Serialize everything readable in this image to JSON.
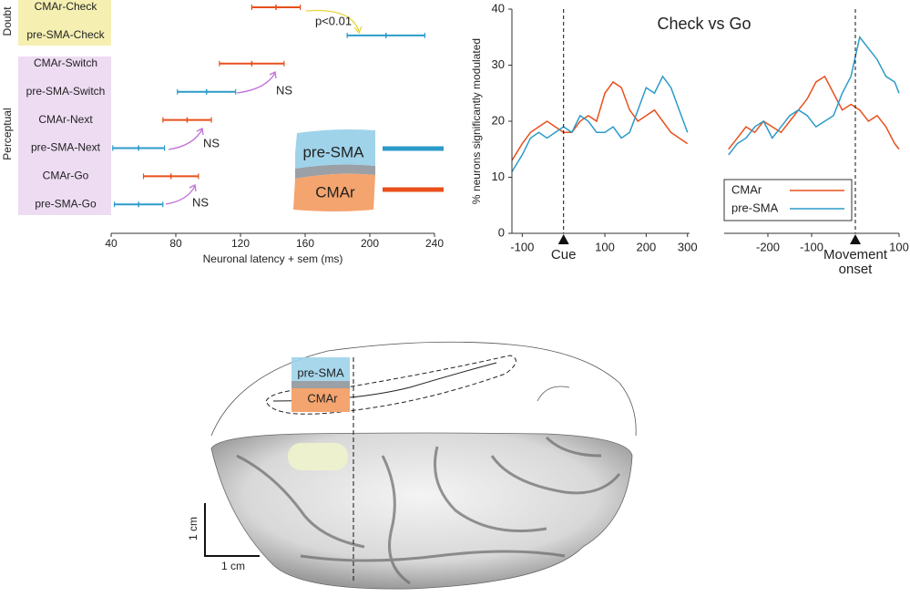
{
  "chart_data": [
    {
      "type": "errorbar",
      "groups": [
        "Doubt",
        "Perceptual"
      ],
      "categories": [
        "CMAr-Check",
        "pre-SMA-Check",
        "CMAr-Switch",
        "pre-SMA-Switch",
        "CMAr-Next",
        "pre-SMA-Next",
        "CMAr-Go",
        "pre-SMA-Go"
      ],
      "series": [
        {
          "name": "CMAr",
          "color": "#e8501c",
          "values": [
            142,
            null,
            127,
            null,
            87,
            null,
            77,
            null
          ],
          "errors": [
            15,
            null,
            20,
            null,
            15,
            null,
            17,
            null
          ]
        },
        {
          "name": "pre-SMA",
          "color": "#2b9bc8",
          "values": [
            null,
            210,
            null,
            99,
            null,
            57,
            null,
            57
          ],
          "errors": [
            null,
            24,
            null,
            18,
            null,
            16,
            null,
            15
          ]
        }
      ],
      "xlabel": "Neuronal latency + sem (ms)",
      "xlim": [
        40,
        240
      ],
      "xticks": [
        40,
        80,
        120,
        160,
        200,
        240
      ],
      "annotations": [
        "p<0.01",
        "NS",
        "NS",
        "NS"
      ]
    },
    {
      "type": "line",
      "title": "Check vs Go",
      "ylabel": "% neurons significantly modulated",
      "x": [
        -125,
        -100,
        -80,
        -60,
        -40,
        -20,
        0,
        20,
        40,
        60,
        80,
        100,
        120,
        140,
        160,
        180,
        200,
        220,
        240,
        260,
        280,
        300
      ],
      "series": [
        {
          "color": "#e8501c",
          "values": [
            13,
            16,
            18,
            19,
            20,
            19,
            18,
            18,
            20,
            21,
            20,
            25,
            27,
            26,
            22,
            20,
            21,
            22,
            20,
            18,
            17,
            16
          ]
        },
        {
          "color": "#2b9bc8",
          "values": [
            11,
            14,
            17,
            18,
            17,
            18,
            19,
            18,
            21,
            20,
            18,
            18,
            19,
            17,
            18,
            22,
            26,
            25,
            28,
            26,
            22,
            18
          ]
        }
      ],
      "xlim": [
        -125,
        305
      ],
      "ylim": [
        0,
        40
      ],
      "xticks": [
        -100,
        100,
        200,
        300
      ],
      "yticks": [
        0,
        10,
        20,
        30,
        40
      ],
      "event": {
        "x": 0,
        "label": [
          "Cue"
        ]
      }
    },
    {
      "type": "line",
      "x": [
        -290,
        -270,
        -250,
        -230,
        -210,
        -190,
        -170,
        -150,
        -130,
        -110,
        -90,
        -70,
        -50,
        -30,
        -10,
        10,
        30,
        50,
        70,
        90,
        100
      ],
      "series": [
        {
          "name": "CMAr",
          "color": "#e8501c",
          "values": [
            15,
            17,
            19,
            18,
            20,
            19,
            18,
            20,
            22,
            24,
            27,
            28,
            25,
            22,
            23,
            22,
            20,
            21,
            19,
            16,
            15
          ]
        },
        {
          "name": "pre-SMA",
          "color": "#2b9bc8",
          "values": [
            14,
            16,
            17,
            19,
            20,
            17,
            19,
            21,
            22,
            21,
            19,
            20,
            21,
            25,
            28,
            35,
            33,
            31,
            28,
            27,
            25
          ]
        }
      ],
      "xlim": [
        -300,
        100
      ],
      "ylim": [
        0,
        40
      ],
      "xticks": [
        -200,
        -100,
        100
      ],
      "event": {
        "x": 0,
        "label": [
          "Movement",
          "onset"
        ]
      },
      "legend": "lower left"
    }
  ],
  "brain": {
    "labels": [
      "pre-SMA",
      "CMAr"
    ],
    "scale": [
      "1 cm",
      "1 cm"
    ]
  }
}
